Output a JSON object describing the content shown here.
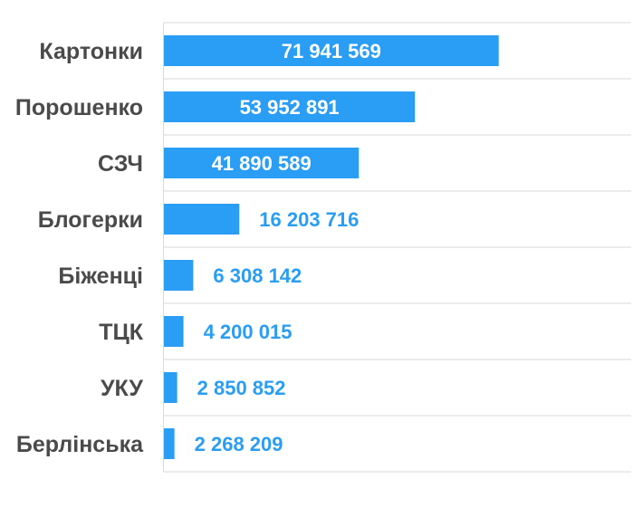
{
  "colors": {
    "bar": "#2a9df4",
    "label_inside": "#ffffff",
    "label_outside": "#2a9df4",
    "category_text": "#4a4a4a",
    "grid": "#d9d9d9"
  },
  "chart_data": {
    "type": "bar",
    "orientation": "horizontal",
    "title": "",
    "xlabel": "",
    "ylabel": "",
    "categories": [
      "Картонки",
      "Порошенко",
      "СЗЧ",
      "Блогерки",
      "Біженці",
      "ТЦК",
      "УКУ",
      "Берлінська"
    ],
    "values": [
      71941569,
      53952891,
      41890589,
      16203716,
      6308142,
      4200015,
      2850852,
      2268209
    ],
    "value_labels": [
      "71 941 569",
      "53 952 891",
      "41 890 589",
      "16 203 716",
      "6 308 142",
      "4 200 015",
      "2 850 852",
      "2 268 209"
    ],
    "xlim": [
      0,
      100000000
    ],
    "grid": true,
    "legend": "none"
  }
}
